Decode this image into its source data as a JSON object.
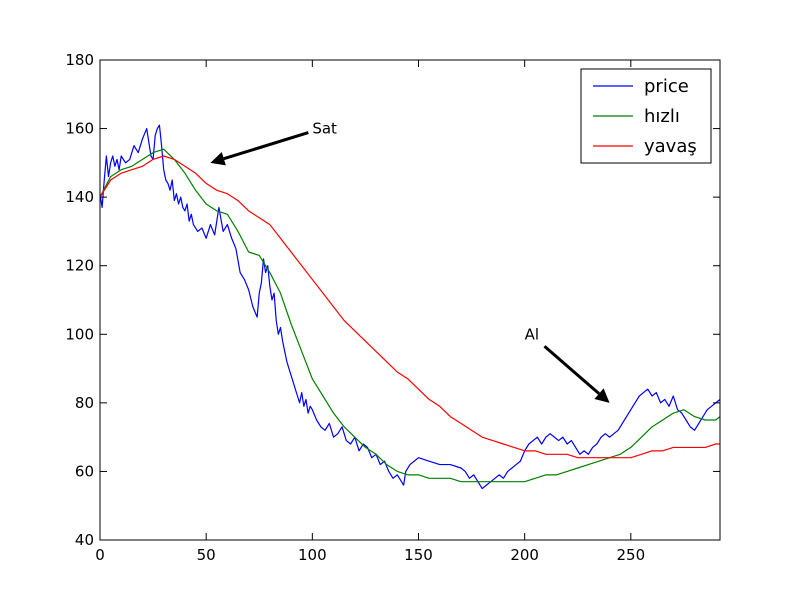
{
  "chart_data": {
    "type": "line",
    "title": "",
    "xlabel": "",
    "ylabel": "",
    "xlim": [
      0,
      292
    ],
    "ylim": [
      40,
      180
    ],
    "xticks": [
      0,
      50,
      100,
      150,
      200,
      250
    ],
    "yticks": [
      40,
      60,
      80,
      100,
      120,
      140,
      160,
      180
    ],
    "grid": false,
    "legend": "top-right",
    "series": [
      {
        "name": "price",
        "color": "#0000ff",
        "x": [
          0,
          1,
          2,
          3,
          4,
          5,
          6,
          7,
          8,
          9,
          10,
          12,
          14,
          16,
          18,
          20,
          22,
          23,
          24,
          25,
          26,
          27,
          28,
          29,
          30,
          31,
          32,
          33,
          34,
          35,
          36,
          37,
          38,
          39,
          40,
          41,
          42,
          43,
          44,
          46,
          48,
          50,
          52,
          54,
          56,
          58,
          60,
          62,
          64,
          66,
          68,
          70,
          72,
          74,
          75,
          76,
          77,
          78,
          79,
          80,
          81,
          82,
          83,
          84,
          85,
          86,
          87,
          88,
          89,
          90,
          91,
          92,
          93,
          94,
          95,
          96,
          97,
          98,
          99,
          100,
          102,
          104,
          106,
          108,
          110,
          112,
          114,
          116,
          118,
          120,
          122,
          124,
          126,
          128,
          130,
          132,
          134,
          136,
          138,
          140,
          142,
          143,
          144,
          146,
          148,
          150,
          155,
          160,
          165,
          170,
          172,
          174,
          176,
          178,
          180,
          182,
          184,
          186,
          188,
          190,
          192,
          194,
          196,
          198,
          200,
          202,
          204,
          206,
          208,
          210,
          212,
          214,
          216,
          218,
          220,
          222,
          224,
          226,
          228,
          230,
          232,
          234,
          236,
          238,
          240,
          242,
          244,
          246,
          248,
          250,
          252,
          254,
          256,
          258,
          260,
          262,
          264,
          266,
          268,
          270,
          272,
          274,
          276,
          278,
          280,
          282,
          284,
          286,
          288,
          290,
          292
        ],
        "y": [
          141,
          137,
          145,
          152,
          146,
          150,
          152,
          149,
          151,
          148,
          152,
          150,
          151,
          155,
          153,
          157,
          160,
          156,
          152,
          151,
          158,
          160,
          161,
          155,
          148,
          145,
          144,
          142,
          145,
          139,
          141,
          138,
          140,
          137,
          136,
          138,
          133,
          135,
          132,
          130,
          131,
          128,
          132,
          129,
          137,
          130,
          132,
          128,
          125,
          118,
          116,
          113,
          108,
          105,
          112,
          115,
          122,
          118,
          120,
          114,
          110,
          112,
          104,
          100,
          102,
          98,
          95,
          92,
          90,
          88,
          86,
          84,
          82,
          80,
          83,
          79,
          81,
          77,
          79,
          78,
          75,
          73,
          72,
          74,
          70,
          71,
          73,
          69,
          68,
          70,
          66,
          68,
          67,
          64,
          65,
          62,
          63,
          60,
          58,
          59,
          57,
          56,
          60,
          62,
          63,
          64,
          63,
          62,
          62,
          61,
          60,
          58,
          59,
          57,
          55,
          56,
          57,
          58,
          59,
          58,
          60,
          61,
          62,
          63,
          66,
          68,
          69,
          70,
          68,
          70,
          71,
          70,
          69,
          70,
          68,
          69,
          67,
          65,
          66,
          65,
          67,
          68,
          70,
          71,
          70,
          71,
          72,
          74,
          76,
          78,
          80,
          82,
          83,
          84,
          82,
          83,
          80,
          81,
          79,
          82,
          78,
          77,
          75,
          73,
          72,
          74,
          76,
          78,
          79,
          80,
          81
        ]
      },
      {
        "name": "hızlı",
        "color": "#008000",
        "x": [
          0,
          5,
          10,
          15,
          20,
          25,
          30,
          35,
          40,
          45,
          50,
          55,
          60,
          65,
          70,
          75,
          80,
          85,
          90,
          95,
          100,
          105,
          110,
          115,
          120,
          125,
          130,
          135,
          140,
          145,
          150,
          155,
          160,
          165,
          170,
          175,
          180,
          185,
          190,
          195,
          200,
          205,
          210,
          215,
          220,
          225,
          230,
          235,
          240,
          245,
          250,
          255,
          260,
          265,
          270,
          275,
          280,
          285,
          290,
          292
        ],
        "y": [
          140,
          146,
          148,
          149,
          151,
          153,
          154,
          151,
          147,
          142,
          138,
          136,
          135,
          130,
          124,
          123,
          118,
          112,
          103,
          95,
          87,
          82,
          77,
          73,
          70,
          67,
          65,
          62,
          60,
          59,
          59,
          58,
          58,
          58,
          57,
          57,
          57,
          57,
          57,
          57,
          57,
          58,
          59,
          59,
          60,
          61,
          62,
          63,
          64,
          65,
          67,
          70,
          73,
          75,
          77,
          78,
          76,
          75,
          75,
          76
        ]
      },
      {
        "name": "yavaş",
        "color": "#ff0000",
        "x": [
          0,
          5,
          10,
          15,
          20,
          25,
          30,
          35,
          40,
          45,
          50,
          55,
          60,
          65,
          70,
          75,
          80,
          85,
          90,
          95,
          100,
          105,
          110,
          115,
          120,
          125,
          130,
          135,
          140,
          145,
          150,
          155,
          160,
          165,
          170,
          175,
          180,
          185,
          190,
          195,
          200,
          205,
          210,
          215,
          220,
          225,
          230,
          235,
          240,
          245,
          250,
          255,
          260,
          265,
          270,
          275,
          280,
          285,
          290,
          292
        ],
        "y": [
          140,
          145,
          147,
          148,
          149,
          151,
          152,
          151,
          149,
          147,
          144,
          142,
          141,
          139,
          136,
          134,
          132,
          128,
          124,
          120,
          116,
          112,
          108,
          104,
          101,
          98,
          95,
          92,
          89,
          87,
          84,
          81,
          79,
          76,
          74,
          72,
          70,
          69,
          68,
          67,
          66,
          66,
          65,
          65,
          65,
          64,
          64,
          64,
          64,
          64,
          64,
          65,
          66,
          66,
          67,
          67,
          67,
          67,
          68,
          68
        ]
      }
    ],
    "annotations": [
      {
        "text": "Sat",
        "xy": [
          52,
          150
        ],
        "xytext": [
          100,
          160
        ]
      },
      {
        "text": "Al",
        "xy": [
          240,
          80
        ],
        "xytext": [
          200,
          100
        ]
      }
    ]
  }
}
